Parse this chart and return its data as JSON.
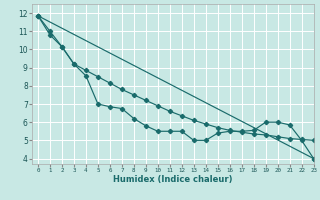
{
  "xlabel": "Humidex (Indice chaleur)",
  "xlim": [
    -0.5,
    23
  ],
  "ylim": [
    3.7,
    12.5
  ],
  "yticks": [
    4,
    5,
    6,
    7,
    8,
    9,
    10,
    11,
    12
  ],
  "xticks": [
    0,
    1,
    2,
    3,
    4,
    5,
    6,
    7,
    8,
    9,
    10,
    11,
    12,
    13,
    14,
    15,
    16,
    17,
    18,
    19,
    20,
    21,
    22,
    23
  ],
  "bg_color": "#c8e8e4",
  "grid_color": "#ffffff",
  "line_color": "#1a6b6b",
  "curve1_x": [
    0,
    1,
    2,
    3,
    4,
    5,
    6,
    7,
    8,
    9,
    10,
    11,
    12,
    13,
    14,
    15,
    16,
    17,
    18,
    19,
    20,
    21,
    22,
    23
  ],
  "curve1_y": [
    11.85,
    10.8,
    10.15,
    9.2,
    8.55,
    7.0,
    6.85,
    6.75,
    6.2,
    5.8,
    5.5,
    5.5,
    5.5,
    5.0,
    5.0,
    5.4,
    5.5,
    5.5,
    5.55,
    6.0,
    6.0,
    5.85,
    5.0,
    4.0
  ],
  "curve2_x": [
    0,
    23
  ],
  "curve2_y": [
    11.85,
    4.0
  ],
  "curve3_x": [
    0,
    1,
    2,
    3,
    4,
    5,
    6,
    7,
    8,
    9,
    10,
    11,
    12,
    13,
    14,
    15,
    16,
    17,
    18,
    19,
    20,
    21,
    22,
    23
  ],
  "curve3_y": [
    11.85,
    11.0,
    10.15,
    9.2,
    8.85,
    8.5,
    8.15,
    7.8,
    7.5,
    7.2,
    6.9,
    6.6,
    6.35,
    6.1,
    5.9,
    5.7,
    5.55,
    5.45,
    5.35,
    5.3,
    5.2,
    5.1,
    5.05,
    5.0
  ]
}
